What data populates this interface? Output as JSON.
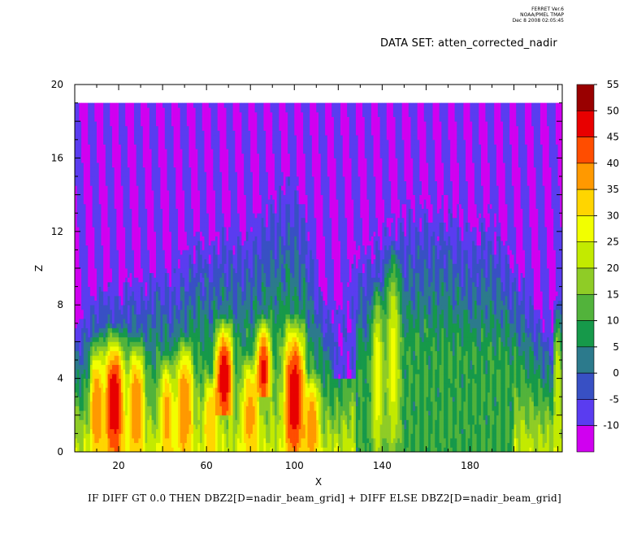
{
  "header": {
    "line1": "FERRET Ver.6",
    "line2": "NOAA/PMEL TMAP",
    "line3": "Dec 8 2008 02:05:45"
  },
  "dataset_label": "DATA SET: atten_corrected_nadir",
  "expression": "IF DIFF GT 0.0 THEN DBZ2[D=nadir_beam_grid] + DIFF ELSE DBZ2[D=nadir_beam_grid]",
  "chart_data": {
    "type": "heatmap",
    "xlabel": "X",
    "ylabel": "Z",
    "xlim": [
      0,
      222
    ],
    "ylim": [
      0,
      20
    ],
    "x_ticks": [
      20,
      60,
      100,
      140,
      180
    ],
    "y_ticks": [
      0,
      4,
      8,
      12,
      16,
      20
    ],
    "colorbar": {
      "levels": [
        55,
        50,
        45,
        40,
        35,
        30,
        25,
        20,
        15,
        10,
        5,
        0,
        -5,
        -10
      ],
      "colors": [
        "#990000",
        "#e80000",
        "#ff4d00",
        "#ff9900",
        "#ffd500",
        "#f2ff00",
        "#c3ea00",
        "#8fcc26",
        "#52b33b",
        "#16994a",
        "#2c7a8c",
        "#3850c4",
        "#5a3cf0",
        "#d000f0"
      ]
    },
    "cloud_top_height": 19.1,
    "profiles": [
      {
        "x": 0,
        "top": 6.5
      },
      {
        "x": 8,
        "top": 8.5
      },
      {
        "x": 14,
        "top": 9.5
      },
      {
        "x": 20,
        "top": 8.8
      },
      {
        "x": 26,
        "top": 9.8
      },
      {
        "x": 32,
        "top": 9.0
      },
      {
        "x": 38,
        "top": 10.5
      },
      {
        "x": 44,
        "top": 9.5
      },
      {
        "x": 50,
        "top": 11.0
      },
      {
        "x": 56,
        "top": 12.0
      },
      {
        "x": 62,
        "top": 11.3
      },
      {
        "x": 68,
        "top": 12.5
      },
      {
        "x": 74,
        "top": 11.8
      },
      {
        "x": 80,
        "top": 12.2
      },
      {
        "x": 86,
        "top": 13.5
      },
      {
        "x": 92,
        "top": 14.2
      },
      {
        "x": 98,
        "top": 15.2
      },
      {
        "x": 104,
        "top": 13.8
      },
      {
        "x": 110,
        "top": 9.5
      },
      {
        "x": 116,
        "top": 7.5
      },
      {
        "x": 122,
        "top": 8.0
      },
      {
        "x": 128,
        "top": 11.0
      },
      {
        "x": 134,
        "top": 11.5
      },
      {
        "x": 140,
        "top": 12.5
      },
      {
        "x": 146,
        "top": 13.0
      },
      {
        "x": 152,
        "top": 13.8
      },
      {
        "x": 158,
        "top": 14.0
      },
      {
        "x": 164,
        "top": 13.8
      },
      {
        "x": 170,
        "top": 14.0
      },
      {
        "x": 176,
        "top": 13.2
      },
      {
        "x": 182,
        "top": 12.5
      },
      {
        "x": 188,
        "top": 13.5
      },
      {
        "x": 194,
        "top": 12.5
      },
      {
        "x": 200,
        "top": 10.5
      },
      {
        "x": 206,
        "top": 9.0
      },
      {
        "x": 212,
        "top": 7.5
      },
      {
        "x": 218,
        "top": 6.5
      },
      {
        "x": 222,
        "top": 6.0
      }
    ],
    "peaks": [
      {
        "x": 10,
        "z0": 0,
        "z1": 5,
        "value": 45,
        "w": 8
      },
      {
        "x": 18,
        "z0": 0,
        "z1": 5.5,
        "value": 55,
        "w": 12
      },
      {
        "x": 28,
        "z0": 0,
        "z1": 5,
        "value": 45,
        "w": 10
      },
      {
        "x": 42,
        "z0": 0,
        "z1": 4,
        "value": 42,
        "w": 8
      },
      {
        "x": 50,
        "z0": 0,
        "z1": 5,
        "value": 45,
        "w": 10
      },
      {
        "x": 62,
        "z0": 0,
        "z1": 3,
        "value": 40,
        "w": 8
      },
      {
        "x": 68,
        "z0": 2,
        "z1": 6,
        "value": 55,
        "w": 10
      },
      {
        "x": 80,
        "z0": 0,
        "z1": 4,
        "value": 42,
        "w": 10
      },
      {
        "x": 86,
        "z0": 3,
        "z1": 6,
        "value": 52,
        "w": 8
      },
      {
        "x": 100,
        "z0": 0,
        "z1": 6,
        "value": 55,
        "w": 12
      },
      {
        "x": 108,
        "z0": 0,
        "z1": 3,
        "value": 45,
        "w": 8
      },
      {
        "x": 138,
        "z0": 0,
        "z1": 8,
        "value": 33,
        "w": 7
      },
      {
        "x": 145,
        "z0": 0,
        "z1": 10,
        "value": 32,
        "w": 8
      },
      {
        "x": 220,
        "z0": 0,
        "z1": 7,
        "value": 30,
        "w": 5
      }
    ]
  }
}
